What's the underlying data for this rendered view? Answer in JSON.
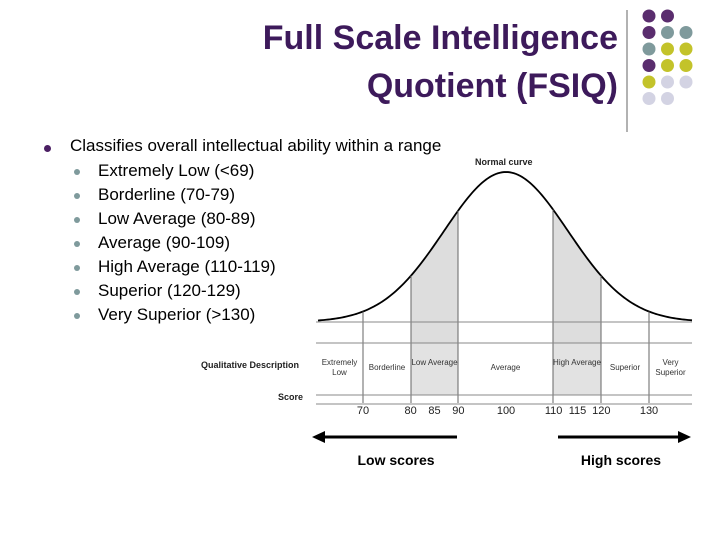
{
  "title": [
    "Full Scale Intelligence",
    "Quotient (FSIQ)"
  ],
  "bullet": "Classifies overall intellectual ability within a range",
  "sub_bullets": [
    "Extremely Low (<69)",
    "Borderline (70-79)",
    "Low Average (80-89)",
    "Average (90-109)",
    "High Average (110-119)",
    "Superior (120-129)",
    "Very Superior (>130)"
  ],
  "figure": {
    "caption": "Normal curve",
    "row_labels": [
      "Qualitative Description",
      "Score"
    ],
    "categories": [
      "Extremely Low",
      "Borderline",
      "Low Average",
      "Average",
      "High Average",
      "Superior",
      "Very Superior"
    ],
    "scores": [
      70,
      80,
      85,
      90,
      100,
      110,
      115,
      120,
      130
    ],
    "arrows": [
      "Low scores",
      "High scores"
    ]
  }
}
